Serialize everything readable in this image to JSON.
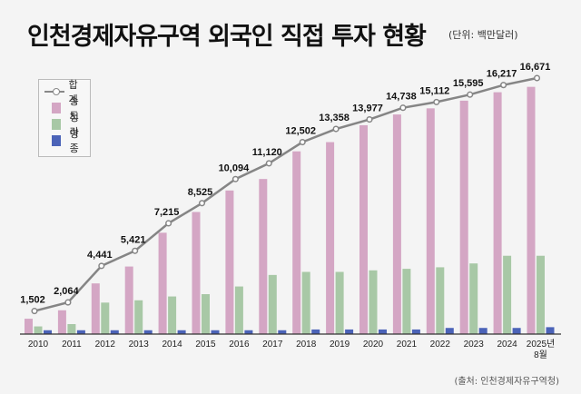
{
  "header": {
    "title": "인천경제자유구역 외국인 직접 투자 현황",
    "unit": "(단위: 백만달러)"
  },
  "footer": {
    "source": "(출처: 인천경제자유구역청)"
  },
  "colors": {
    "total": "#858585",
    "songdo": "#d4a6c4",
    "cheongna": "#a8c8a6",
    "yeongjong": "#4b63b8"
  },
  "chart_data": {
    "type": "bar",
    "title": "인천경제자유구역 외국인 직접 투자 현황",
    "ylabel": "백만달러",
    "xlabel": "",
    "ylim": [
      0,
      17000
    ],
    "grid": false,
    "legend": "top-left",
    "categories": [
      "2010",
      "2011",
      "2012",
      "2013",
      "2014",
      "2015",
      "2016",
      "2017",
      "2018",
      "2019",
      "2020",
      "2021",
      "2022",
      "2023",
      "2024",
      "2025년 8월"
    ],
    "series": [
      {
        "name": "합계",
        "kind": "line",
        "values": [
          1502,
          2064,
          4441,
          5421,
          7215,
          8525,
          10094,
          11120,
          12502,
          13358,
          13977,
          14738,
          15112,
          15595,
          16217,
          16671
        ]
      },
      {
        "name": "송도",
        "kind": "bar",
        "values": [
          1000,
          1550,
          3300,
          4400,
          6600,
          7950,
          9350,
          10100,
          11900,
          12500,
          13600,
          14300,
          14700,
          15200,
          15750,
          16100
        ]
      },
      {
        "name": "청라",
        "kind": "bar",
        "values": [
          500,
          650,
          2050,
          2200,
          2450,
          2600,
          3100,
          3850,
          4050,
          4050,
          4150,
          4250,
          4350,
          4600,
          5100,
          5100
        ]
      },
      {
        "name": "영종",
        "kind": "bar",
        "values": [
          250,
          250,
          250,
          250,
          250,
          250,
          250,
          250,
          300,
          300,
          300,
          300,
          400,
          400,
          400,
          450
        ]
      }
    ]
  }
}
